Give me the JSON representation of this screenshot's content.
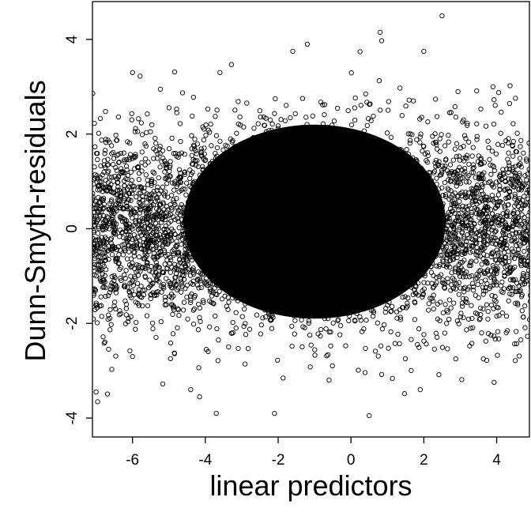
{
  "chart_data": {
    "type": "scatter",
    "title": "",
    "xlabel": "linear predictors",
    "ylabel": "Dunn-Smyth-residuals",
    "xlim": [
      -7.1,
      4.9
    ],
    "ylim": [
      -4.4,
      4.8
    ],
    "xticks": [
      -6,
      -4,
      -2,
      0,
      2,
      4
    ],
    "yticks": [
      -4,
      -2,
      0,
      2,
      4
    ],
    "grid": false,
    "legend": "none",
    "marker": "open-circle",
    "marker_color": "#000000",
    "background": "#ffffff",
    "point_cloud": {
      "description": "dense cloud of residuals centered near zero",
      "x_center": -0.9,
      "x_spread": 3.4,
      "y_center": 0,
      "y_spread": 1.0
    },
    "series": [
      {
        "values_sample": [
          {
            "x": 2.5,
            "y": 4.5
          },
          {
            "x": 0.8,
            "y": 4.15
          },
          {
            "x": -1.2,
            "y": 3.9
          },
          {
            "x": -1.6,
            "y": 3.75
          },
          {
            "x": -6.0,
            "y": 3.3
          },
          {
            "x": -3.6,
            "y": 3.3
          },
          {
            "x": 2.0,
            "y": 3.75
          },
          {
            "x": 3.9,
            "y": 3.0
          },
          {
            "x": -0.6,
            "y": -3.2
          },
          {
            "x": -2.1,
            "y": -3.9
          },
          {
            "x": -3.7,
            "y": -3.9
          },
          {
            "x": 0.5,
            "y": -3.95
          },
          {
            "x": -4.4,
            "y": -3.4
          },
          {
            "x": -7.0,
            "y": -3.45
          },
          {
            "x": 1.9,
            "y": -3.4
          },
          {
            "x": -6.0,
            "y": -2.7
          }
        ]
      }
    ]
  }
}
